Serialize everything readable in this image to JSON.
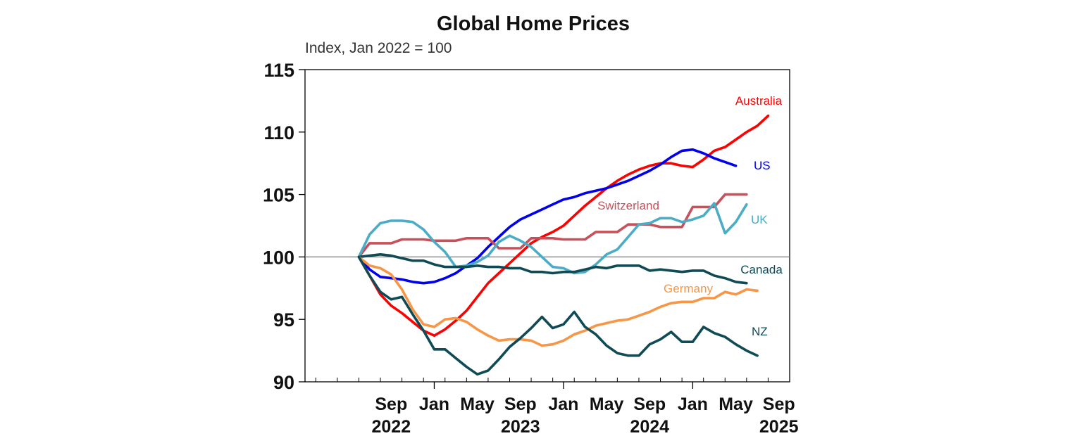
{
  "chart_data": {
    "type": "line",
    "title": "Global Home Prices",
    "subtitle": "Index, Jan 2022 = 100",
    "xlabel": "",
    "ylabel": "",
    "ylim": [
      90,
      115
    ],
    "yticks": [
      90,
      95,
      100,
      105,
      110,
      115
    ],
    "xlim": [
      "2022-01",
      "2025-10"
    ],
    "xticks": [
      {
        "month": "2022-09",
        "label": "Sep",
        "year": "2022"
      },
      {
        "month": "2023-01",
        "label": "Jan",
        "year": ""
      },
      {
        "month": "2023-05",
        "label": "May",
        "year": ""
      },
      {
        "month": "2023-09",
        "label": "Sep",
        "year": "2023"
      },
      {
        "month": "2024-01",
        "label": "Jan",
        "year": ""
      },
      {
        "month": "2024-05",
        "label": "May",
        "year": ""
      },
      {
        "month": "2024-09",
        "label": "Sep",
        "year": "2024"
      },
      {
        "month": "2025-01",
        "label": "Jan",
        "year": ""
      },
      {
        "month": "2025-05",
        "label": "May",
        "year": ""
      },
      {
        "month": "2025-09",
        "label": "Sep",
        "year": "2025"
      }
    ],
    "reference_line": 100,
    "grid": false,
    "series": [
      {
        "name": "Australia",
        "color": "#ff0000",
        "start": "2022-06",
        "values": [
          100.0,
          98.5,
          97.0,
          96.1,
          95.5,
          94.8,
          94.1,
          93.7,
          94.2,
          94.9,
          95.7,
          96.8,
          97.9,
          98.7,
          99.5,
          100.3,
          101.1,
          101.6,
          102.0,
          102.5,
          103.3,
          104.1,
          104.8,
          105.5,
          106.1,
          106.6,
          107.0,
          107.3,
          107.5,
          107.5,
          107.3,
          107.2,
          107.8,
          108.5,
          108.8,
          109.4,
          110.0,
          110.5,
          111.3
        ]
      },
      {
        "name": "US",
        "color": "#0000ee",
        "start": "2022-06",
        "values": [
          100.0,
          99.0,
          98.4,
          98.3,
          98.2,
          98.0,
          97.9,
          98.0,
          98.3,
          98.7,
          99.3,
          99.9,
          100.8,
          101.6,
          102.4,
          103.0,
          103.4,
          103.8,
          104.2,
          104.6,
          104.8,
          105.1,
          105.3,
          105.5,
          105.8,
          106.1,
          106.5,
          106.9,
          107.4,
          108.0,
          108.5,
          108.6,
          108.3,
          107.9,
          107.6,
          107.3
        ]
      },
      {
        "name": "Switzerland",
        "color": "#c8505a",
        "start": "2022-06",
        "values": [
          100.0,
          101.1,
          101.1,
          101.1,
          101.4,
          101.4,
          101.4,
          101.3,
          101.3,
          101.3,
          101.5,
          101.5,
          101.5,
          100.7,
          100.7,
          100.7,
          101.5,
          101.5,
          101.5,
          101.4,
          101.4,
          101.4,
          102.0,
          102.0,
          102.0,
          102.6,
          102.6,
          102.6,
          102.4,
          102.4,
          102.4,
          104.0,
          104.0,
          104.0,
          105.0,
          105.0,
          105.0
        ]
      },
      {
        "name": "UK",
        "color": "#4bacc6",
        "start": "2022-06",
        "values": [
          100.0,
          101.8,
          102.7,
          102.9,
          102.9,
          102.8,
          102.2,
          101.2,
          100.4,
          99.2,
          99.3,
          99.6,
          100.1,
          101.2,
          101.7,
          101.3,
          100.8,
          100.0,
          99.2,
          99.1,
          98.7,
          98.8,
          99.4,
          100.2,
          100.6,
          101.6,
          102.6,
          102.7,
          103.1,
          103.1,
          102.8,
          103.0,
          103.3,
          104.3,
          101.9,
          102.8,
          104.2
        ]
      },
      {
        "name": "Canada",
        "color": "#0f4a55",
        "start": "2022-06",
        "values": [
          100.0,
          100.1,
          100.2,
          100.1,
          99.9,
          99.7,
          99.7,
          99.4,
          99.2,
          99.2,
          99.2,
          99.3,
          99.2,
          99.2,
          99.1,
          99.1,
          98.8,
          98.8,
          98.7,
          98.8,
          98.8,
          99.0,
          99.2,
          99.1,
          99.3,
          99.3,
          99.3,
          98.9,
          99.0,
          98.9,
          98.8,
          98.9,
          98.9,
          98.5,
          98.3,
          98.0,
          97.9
        ]
      },
      {
        "name": "Germany",
        "color": "#f79646",
        "start": "2022-06",
        "values": [
          100.0,
          99.3,
          99.1,
          98.6,
          97.4,
          95.8,
          94.6,
          94.4,
          95.0,
          95.1,
          94.8,
          94.2,
          93.7,
          93.3,
          93.4,
          93.4,
          93.3,
          92.9,
          93.0,
          93.3,
          93.8,
          94.1,
          94.5,
          94.7,
          94.9,
          95.0,
          95.3,
          95.6,
          96.0,
          96.3,
          96.4,
          96.4,
          96.7,
          96.7,
          97.2,
          97.0,
          97.4,
          97.3
        ]
      },
      {
        "name": "NZ",
        "color": "#0f4a55",
        "start": "2022-06",
        "values": [
          100.0,
          98.5,
          97.2,
          96.6,
          96.8,
          95.4,
          94.1,
          92.6,
          92.6,
          91.9,
          91.2,
          90.6,
          90.9,
          91.8,
          92.8,
          93.5,
          94.3,
          95.2,
          94.3,
          94.6,
          95.6,
          94.4,
          93.8,
          92.9,
          92.3,
          92.1,
          92.1,
          93.0,
          93.4,
          94.0,
          93.2,
          93.2,
          94.4,
          93.9,
          93.6,
          93.0,
          92.5,
          92.1
        ]
      }
    ]
  }
}
